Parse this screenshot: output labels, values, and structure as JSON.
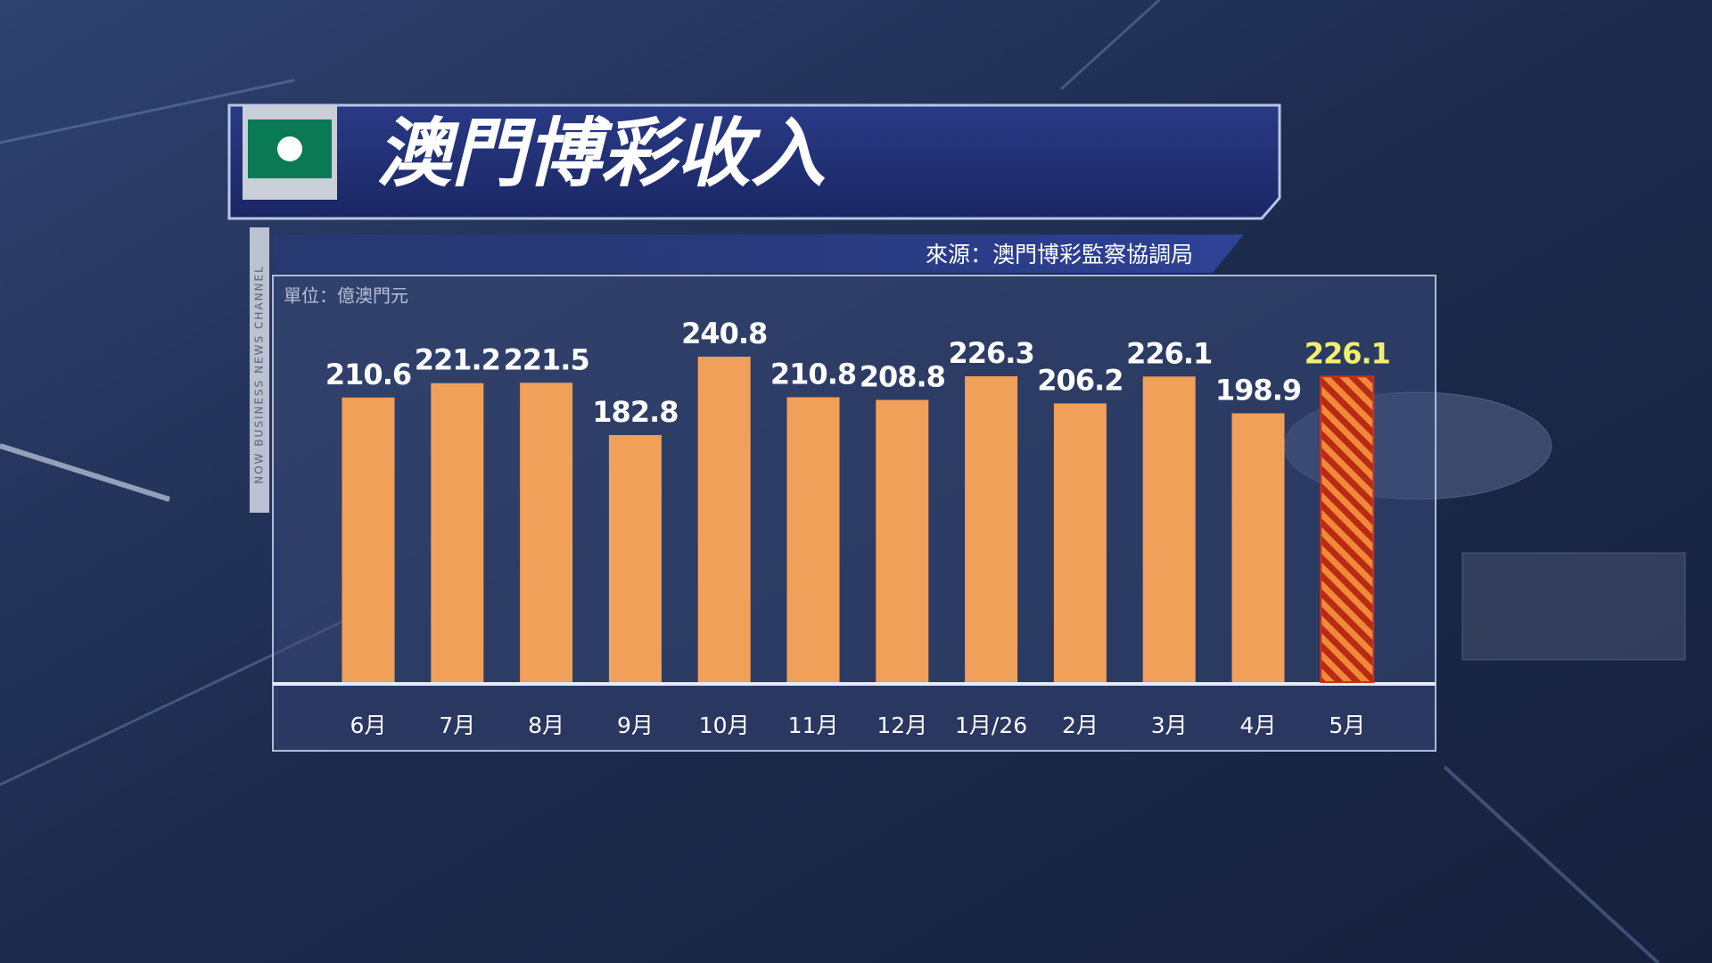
{
  "chart_data": {
    "type": "bar",
    "title": "澳門博彩收入",
    "source": "來源：澳門博彩監察協調局",
    "unit": "單位：億澳門元",
    "channel": "NOW BUSINESS NEWS CHANNEL",
    "categories": [
      "6月",
      "7月",
      "8月",
      "9月",
      "10月",
      "11月",
      "12月",
      "1月/26",
      "2月",
      "3月",
      "4月",
      "5月"
    ],
    "values": [
      210.6,
      221.2,
      221.5,
      182.8,
      240.8,
      210.8,
      208.8,
      226.3,
      206.2,
      226.1,
      198.9,
      226.1
    ],
    "color": "#f1a05a",
    "highlight_last": true,
    "highlight_color": "#c9321b",
    "highlight_label_color": "#f2f06a"
  }
}
